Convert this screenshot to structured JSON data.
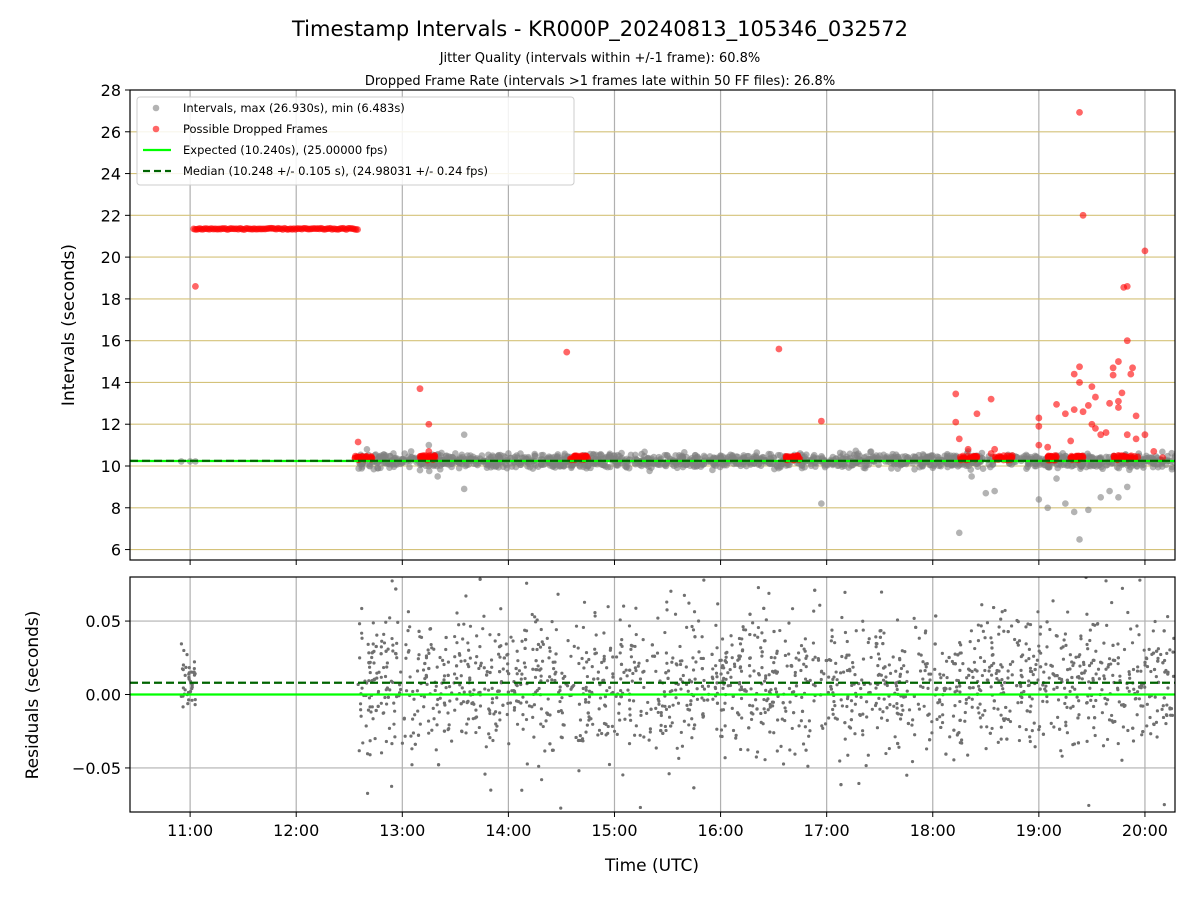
{
  "chart_data": [
    {
      "type": "scatter",
      "title": "Timestamp Intervals - KR000P_20240813_105346_032572",
      "subtitles": [
        "Jitter Quality (intervals within +/-1 frame): 60.8%",
        "Dropped Frame Rate (intervals >1 frames late within 50 FF files): 26.8%"
      ],
      "xlabel": "",
      "ylabel": "Intervals (seconds)",
      "ylim": [
        5.5,
        28
      ],
      "xlim": [
        "10:26",
        "20:17"
      ],
      "yticks": [
        "6",
        "8",
        "10",
        "12",
        "14",
        "16",
        "18",
        "20",
        "22",
        "24",
        "26",
        "28"
      ],
      "grid": true,
      "legend_position": "top-left",
      "series": [
        {
          "name": "Intervals, max (26.930s), min (6.483s)",
          "color": "#808080",
          "description_points": [
            [
              "10:55",
              10.22
            ],
            [
              "11:00",
              10.22
            ],
            [
              "11:03",
              10.22
            ],
            [
              "12:40",
              10.8
            ],
            [
              "12:46",
              9.9
            ],
            [
              "12:55",
              10.6
            ],
            [
              "13:05",
              10.7
            ],
            [
              "13:10",
              9.8
            ],
            [
              "13:15",
              11.0
            ],
            [
              "13:20",
              9.5
            ],
            [
              "13:30",
              10.6
            ],
            [
              "13:35",
              11.5
            ],
            [
              "13:35",
              8.9
            ],
            [
              "13:45",
              10.5
            ],
            [
              "14:00",
              10.6
            ],
            [
              "14:15",
              10.5
            ],
            [
              "15:00",
              10.5
            ],
            [
              "15:30",
              10.5
            ],
            [
              "16:00",
              10.5
            ],
            [
              "16:20",
              10.4
            ],
            [
              "16:45",
              10.6
            ],
            [
              "16:57",
              8.2
            ],
            [
              "17:30",
              10.5
            ],
            [
              "17:55",
              10.5
            ],
            [
              "18:00",
              10.5
            ],
            [
              "18:15",
              6.8
            ],
            [
              "18:20",
              10.7
            ],
            [
              "18:22",
              9.5
            ],
            [
              "18:30",
              8.7
            ],
            [
              "18:35",
              8.8
            ],
            [
              "18:45",
              10.5
            ],
            [
              "19:00",
              8.4
            ],
            [
              "19:05",
              8.0
            ],
            [
              "19:10",
              9.4
            ],
            [
              "19:15",
              8.2
            ],
            [
              "19:20",
              7.8
            ],
            [
              "19:23",
              6.483
            ],
            [
              "19:28",
              7.9
            ],
            [
              "19:35",
              8.5
            ],
            [
              "19:40",
              8.8
            ],
            [
              "19:45",
              8.5
            ],
            [
              "19:50",
              9.0
            ],
            [
              "19:55",
              10.2
            ],
            [
              "20:10",
              10.2
            ]
          ],
          "dense_band": {
            "from": "12:35",
            "to": "20:17",
            "center": 10.24,
            "spread": 0.3
          }
        },
        {
          "name": "Possible Dropped Frames",
          "color": "#ff0000",
          "block": {
            "from": "11:02",
            "to": "12:35",
            "value": 21.35
          },
          "description_points": [
            [
              "11:03",
              18.6
            ],
            [
              "12:35",
              11.15
            ],
            [
              "13:10",
              13.7
            ],
            [
              "13:15",
              12.0
            ],
            [
              "13:15",
              10.7
            ],
            [
              "14:33",
              15.45
            ],
            [
              "16:33",
              15.6
            ],
            [
              "16:57",
              12.15
            ],
            [
              "18:13",
              13.45
            ],
            [
              "18:13",
              12.1
            ],
            [
              "18:15",
              11.3
            ],
            [
              "18:20",
              10.8
            ],
            [
              "18:25",
              12.5
            ],
            [
              "18:33",
              13.2
            ],
            [
              "18:33",
              10.6
            ],
            [
              "18:35",
              10.8
            ],
            [
              "18:45",
              10.5
            ],
            [
              "19:00",
              12.3
            ],
            [
              "19:00",
              11.9
            ],
            [
              "19:00",
              11.0
            ],
            [
              "19:05",
              10.9
            ],
            [
              "19:10",
              12.95
            ],
            [
              "19:15",
              12.5
            ],
            [
              "19:18",
              11.2
            ],
            [
              "19:20",
              12.7
            ],
            [
              "19:20",
              14.4
            ],
            [
              "19:23",
              14.0
            ],
            [
              "19:23",
              14.75
            ],
            [
              "19:23",
              26.93
            ],
            [
              "19:25",
              22.0
            ],
            [
              "19:25",
              12.6
            ],
            [
              "19:28",
              12.9
            ],
            [
              "19:30",
              13.8
            ],
            [
              "19:30",
              12.0
            ],
            [
              "19:32",
              11.8
            ],
            [
              "19:32",
              13.3
            ],
            [
              "19:35",
              11.5
            ],
            [
              "19:38",
              11.6
            ],
            [
              "19:40",
              13.0
            ],
            [
              "19:42",
              14.35
            ],
            [
              "19:42",
              14.7
            ],
            [
              "19:45",
              15.0
            ],
            [
              "19:45",
              12.8
            ],
            [
              "19:45",
              13.1
            ],
            [
              "19:47",
              13.5
            ],
            [
              "19:48",
              18.55
            ],
            [
              "19:50",
              18.6
            ],
            [
              "19:50",
              16.0
            ],
            [
              "19:50",
              11.5
            ],
            [
              "19:52",
              14.4
            ],
            [
              "19:53",
              14.7
            ],
            [
              "19:55",
              11.3
            ],
            [
              "19:55",
              12.4
            ],
            [
              "20:00",
              20.3
            ],
            [
              "20:00",
              11.5
            ],
            [
              "20:05",
              10.7
            ],
            [
              "20:10",
              10.4
            ]
          ],
          "clusters_near_expected": [
            {
              "from": "12:33",
              "to": "12:43"
            },
            {
              "from": "13:10",
              "to": "13:20"
            },
            {
              "from": "14:35",
              "to": "14:45"
            },
            {
              "from": "16:35",
              "to": "16:45"
            },
            {
              "from": "18:15",
              "to": "18:25"
            },
            {
              "from": "18:35",
              "to": "18:45"
            },
            {
              "from": "19:05",
              "to": "19:10"
            },
            {
              "from": "19:18",
              "to": "19:25"
            },
            {
              "from": "19:42",
              "to": "19:58"
            }
          ]
        },
        {
          "name": "Expected (10.240s), (25.00000 fps)",
          "color": "#00ff00",
          "type": "hline",
          "value": 10.24
        },
        {
          "name": "Median (10.248 +/- 0.105 s), (24.98031 +/- 0.24 fps)",
          "color": "#006400",
          "type": "hline",
          "style": "dashed",
          "value": 10.248
        }
      ]
    },
    {
      "type": "scatter",
      "title": "",
      "xlabel": "Time (UTC)",
      "ylabel": "Residuals (seconds)",
      "xlim": [
        "10:26",
        "20:17"
      ],
      "ylim": [
        -0.08,
        0.08
      ],
      "xticks": [
        "11:00",
        "12:00",
        "13:00",
        "14:00",
        "15:00",
        "16:00",
        "17:00",
        "18:00",
        "19:00",
        "20:00"
      ],
      "yticks": [
        "0.05",
        "0.00",
        "−0.05"
      ],
      "grid": true,
      "series": [
        {
          "color": "#707070",
          "point_groups": [
            {
              "from": "10:55",
              "to": "11:03",
              "center": 0.008,
              "spread": 0.025
            },
            {
              "from": "12:35",
              "to": "20:17",
              "center": 0.008,
              "spread": 0.05
            }
          ]
        },
        {
          "color": "#00ff00",
          "type": "hline",
          "value": 0.0
        },
        {
          "color": "#006400",
          "type": "hline",
          "style": "dashed",
          "value": 0.008
        }
      ]
    }
  ]
}
